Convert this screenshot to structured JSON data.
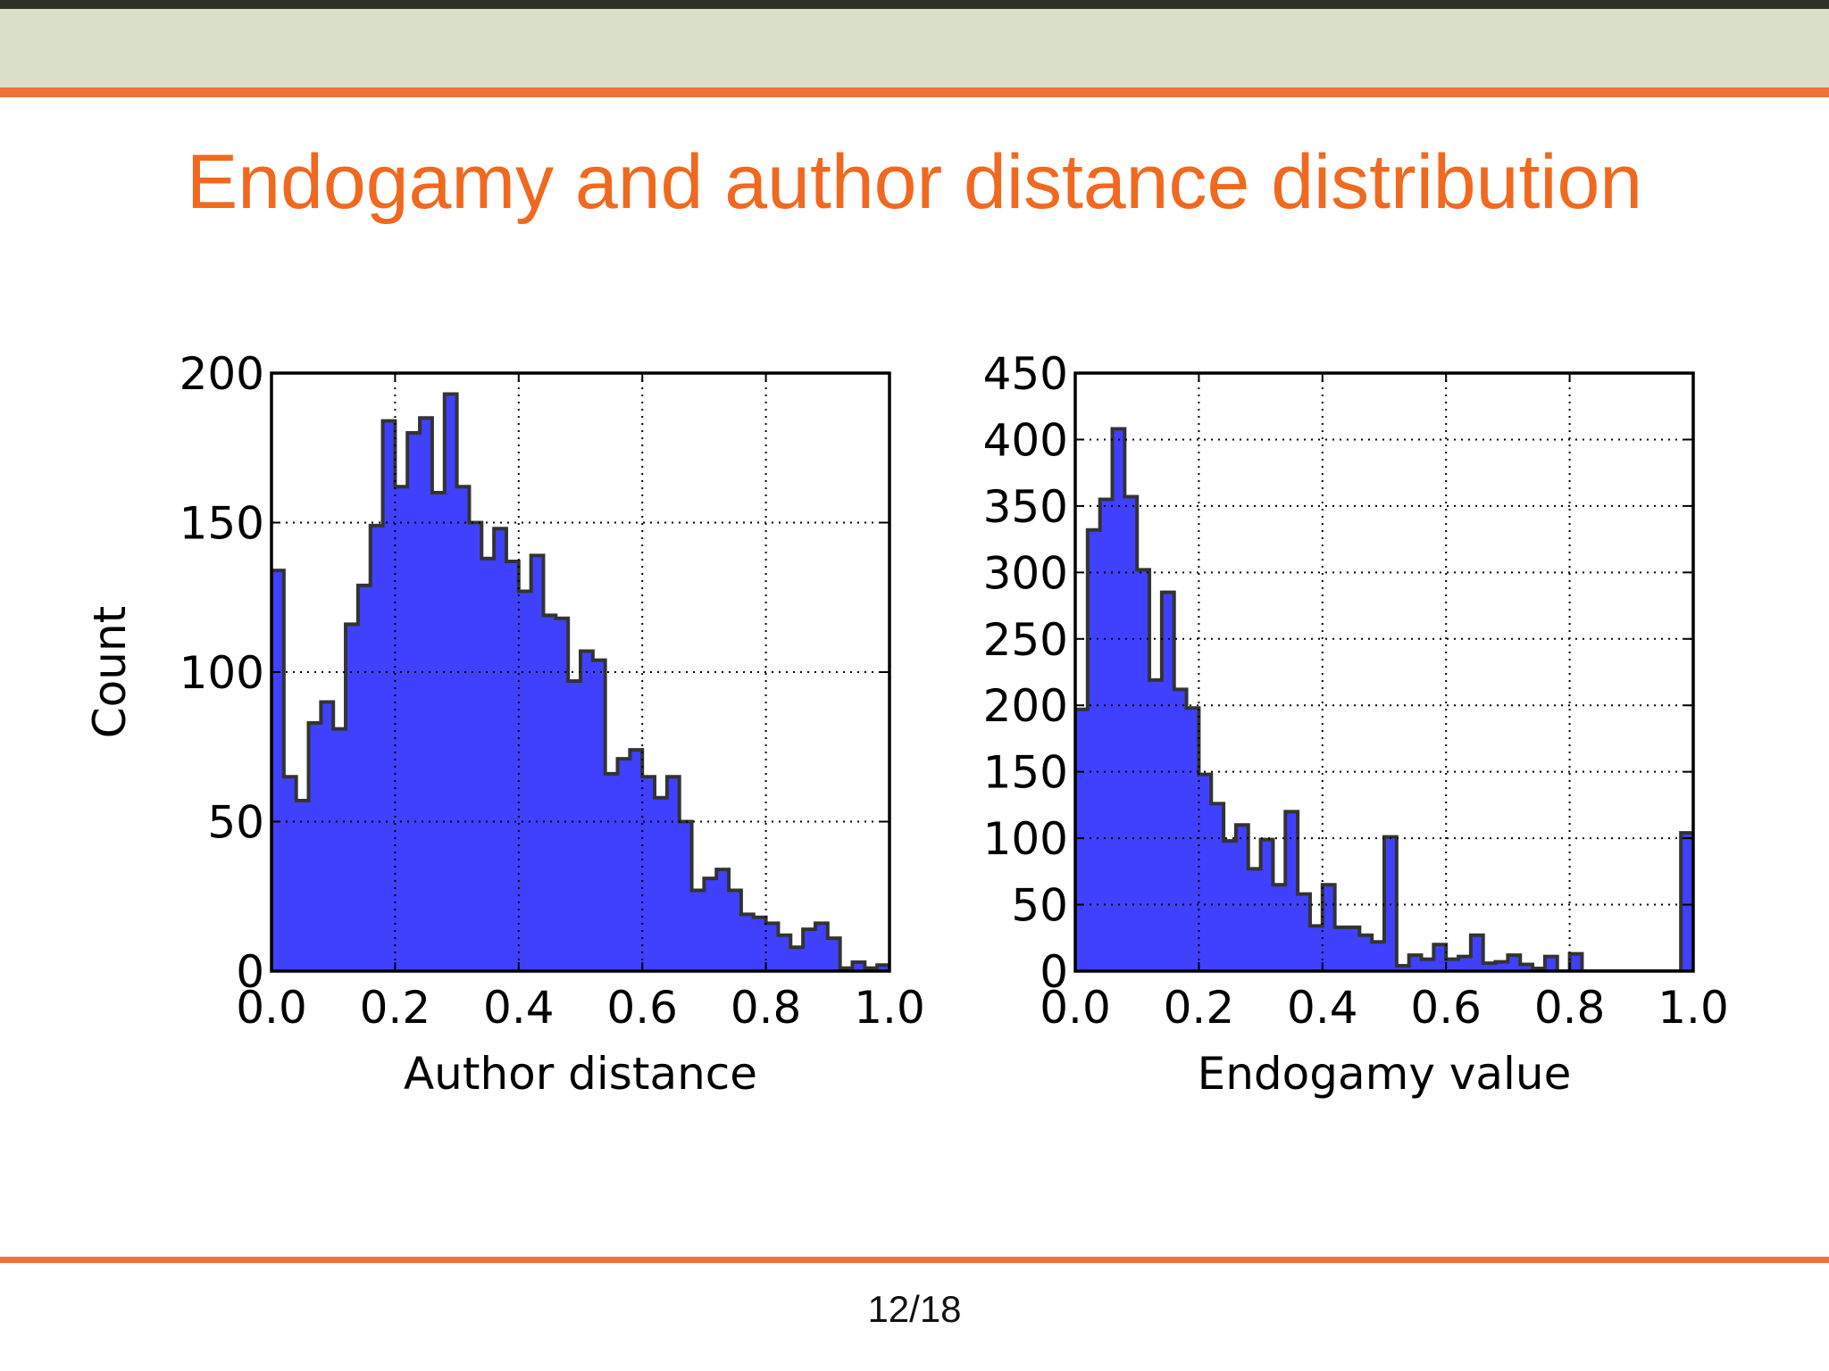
{
  "slide": {
    "title": "Endogamy and author distance distribution",
    "page_number": "12/18"
  },
  "colors": {
    "header_band": "#d9dfc8",
    "accent": "#f0703a",
    "title": "#f0691f",
    "bar_fill": "#4040ff",
    "bar_edge": "#333333"
  },
  "chart_data": [
    {
      "type": "histogram",
      "xlabel": "Author distance",
      "ylabel": "Count",
      "xlim": [
        0,
        1
      ],
      "ylim": [
        0,
        200
      ],
      "xticks": [
        "0.0",
        "0.2",
        "0.4",
        "0.6",
        "0.8",
        "1.0"
      ],
      "yticks": [
        "0",
        "50",
        "100",
        "150",
        "200"
      ],
      "grid": true,
      "bins": 50,
      "bin_range": [
        0,
        1
      ],
      "counts": [
        134,
        65,
        57,
        83,
        90,
        81,
        116,
        129,
        149,
        184,
        162,
        180,
        185,
        160,
        193,
        162,
        150,
        138,
        148,
        137,
        127,
        139,
        119,
        118,
        97,
        107,
        104,
        66,
        71,
        74,
        65,
        58,
        65,
        50,
        27,
        31,
        34,
        27,
        19,
        18,
        16,
        12,
        8,
        14,
        16,
        11,
        1,
        3,
        1,
        2
      ]
    },
    {
      "type": "histogram",
      "xlabel": "Endogamy value",
      "ylabel": "",
      "xlim": [
        0,
        1
      ],
      "ylim": [
        0,
        450
      ],
      "xticks": [
        "0.0",
        "0.2",
        "0.4",
        "0.6",
        "0.8",
        "1.0"
      ],
      "yticks": [
        "0",
        "50",
        "100",
        "150",
        "200",
        "250",
        "300",
        "350",
        "400",
        "450"
      ],
      "grid": true,
      "bins": 50,
      "bin_range": [
        0,
        1
      ],
      "counts": [
        197,
        332,
        355,
        408,
        357,
        302,
        219,
        285,
        212,
        198,
        148,
        126,
        98,
        110,
        77,
        99,
        65,
        120,
        58,
        34,
        65,
        33,
        33,
        27,
        22,
        101,
        4,
        12,
        9,
        20,
        9,
        11,
        27,
        6,
        7,
        12,
        5,
        2,
        11,
        0,
        13,
        0,
        0,
        0,
        0,
        0,
        0,
        0,
        0,
        104
      ]
    }
  ]
}
